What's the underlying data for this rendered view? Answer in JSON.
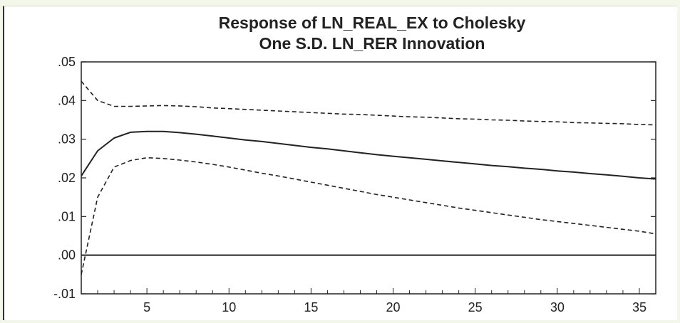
{
  "chart_data": {
    "type": "line",
    "title": [
      "Response of LN_REAL_EX to Cholesky",
      "One S.D. LN_RER Innovation"
    ],
    "xlabel": "",
    "ylabel": "",
    "xlim": [
      1,
      36
    ],
    "ylim": [
      -0.01,
      0.05
    ],
    "xticks": [
      5,
      10,
      15,
      20,
      25,
      30,
      35
    ],
    "xtick_labels": [
      "5",
      "10",
      "15",
      "20",
      "25",
      "30",
      "35"
    ],
    "yticks": [
      -0.01,
      0.0,
      0.01,
      0.02,
      0.03,
      0.04,
      0.05
    ],
    "ytick_labels": [
      "-.01",
      ".00",
      ".01",
      ".02",
      ".03",
      ".04",
      ".05"
    ],
    "zero_line": 0.0,
    "grid": false,
    "legend": "none",
    "colors": {
      "line": "#222222",
      "axis": "#222222"
    },
    "series": [
      {
        "style": "solid",
        "x": [
          1,
          2,
          3,
          4,
          5,
          6,
          7,
          8,
          9,
          10,
          11,
          12,
          13,
          14,
          15,
          16,
          17,
          18,
          19,
          20,
          21,
          22,
          23,
          24,
          25,
          26,
          27,
          28,
          29,
          30,
          31,
          32,
          33,
          34,
          35,
          36
        ],
        "values": [
          0.0205,
          0.027,
          0.0303,
          0.0318,
          0.032,
          0.032,
          0.0317,
          0.0313,
          0.0308,
          0.0303,
          0.0298,
          0.0294,
          0.0289,
          0.0284,
          0.0279,
          0.0275,
          0.027,
          0.0265,
          0.026,
          0.0256,
          0.0252,
          0.0248,
          0.0244,
          0.024,
          0.0236,
          0.0232,
          0.0229,
          0.0225,
          0.0222,
          0.0218,
          0.0215,
          0.0211,
          0.0208,
          0.0204,
          0.02,
          0.0197
        ]
      },
      {
        "style": "dashed",
        "x": [
          1,
          2,
          3,
          4,
          5,
          6,
          7,
          8,
          9,
          10,
          11,
          12,
          13,
          14,
          15,
          16,
          17,
          18,
          19,
          20,
          21,
          22,
          23,
          24,
          25,
          26,
          27,
          28,
          29,
          30,
          31,
          32,
          33,
          34,
          35,
          36
        ],
        "values": [
          0.045,
          0.04,
          0.0385,
          0.0385,
          0.0386,
          0.0387,
          0.0386,
          0.0384,
          0.0381,
          0.0379,
          0.0377,
          0.0375,
          0.0373,
          0.0371,
          0.0369,
          0.0367,
          0.0365,
          0.0364,
          0.0362,
          0.036,
          0.0358,
          0.0357,
          0.0355,
          0.0353,
          0.0352,
          0.035,
          0.0349,
          0.0347,
          0.0346,
          0.0345,
          0.0343,
          0.0342,
          0.0341,
          0.034,
          0.0338,
          0.0337
        ]
      },
      {
        "style": "dashed",
        "x": [
          1,
          2,
          3,
          4,
          5,
          6,
          7,
          8,
          9,
          10,
          11,
          12,
          13,
          14,
          15,
          16,
          17,
          18,
          19,
          20,
          21,
          22,
          23,
          24,
          25,
          26,
          27,
          28,
          29,
          30,
          31,
          32,
          33,
          34,
          35,
          36
        ],
        "values": [
          -0.005,
          0.015,
          0.0228,
          0.0245,
          0.0252,
          0.025,
          0.0246,
          0.0241,
          0.0235,
          0.0228,
          0.022,
          0.0212,
          0.0205,
          0.0197,
          0.0189,
          0.0181,
          0.0173,
          0.0165,
          0.0157,
          0.015,
          0.0143,
          0.0136,
          0.0129,
          0.0122,
          0.0116,
          0.011,
          0.0104,
          0.0098,
          0.0092,
          0.0087,
          0.0082,
          0.0077,
          0.0072,
          0.0067,
          0.0062,
          0.0055
        ]
      }
    ]
  }
}
